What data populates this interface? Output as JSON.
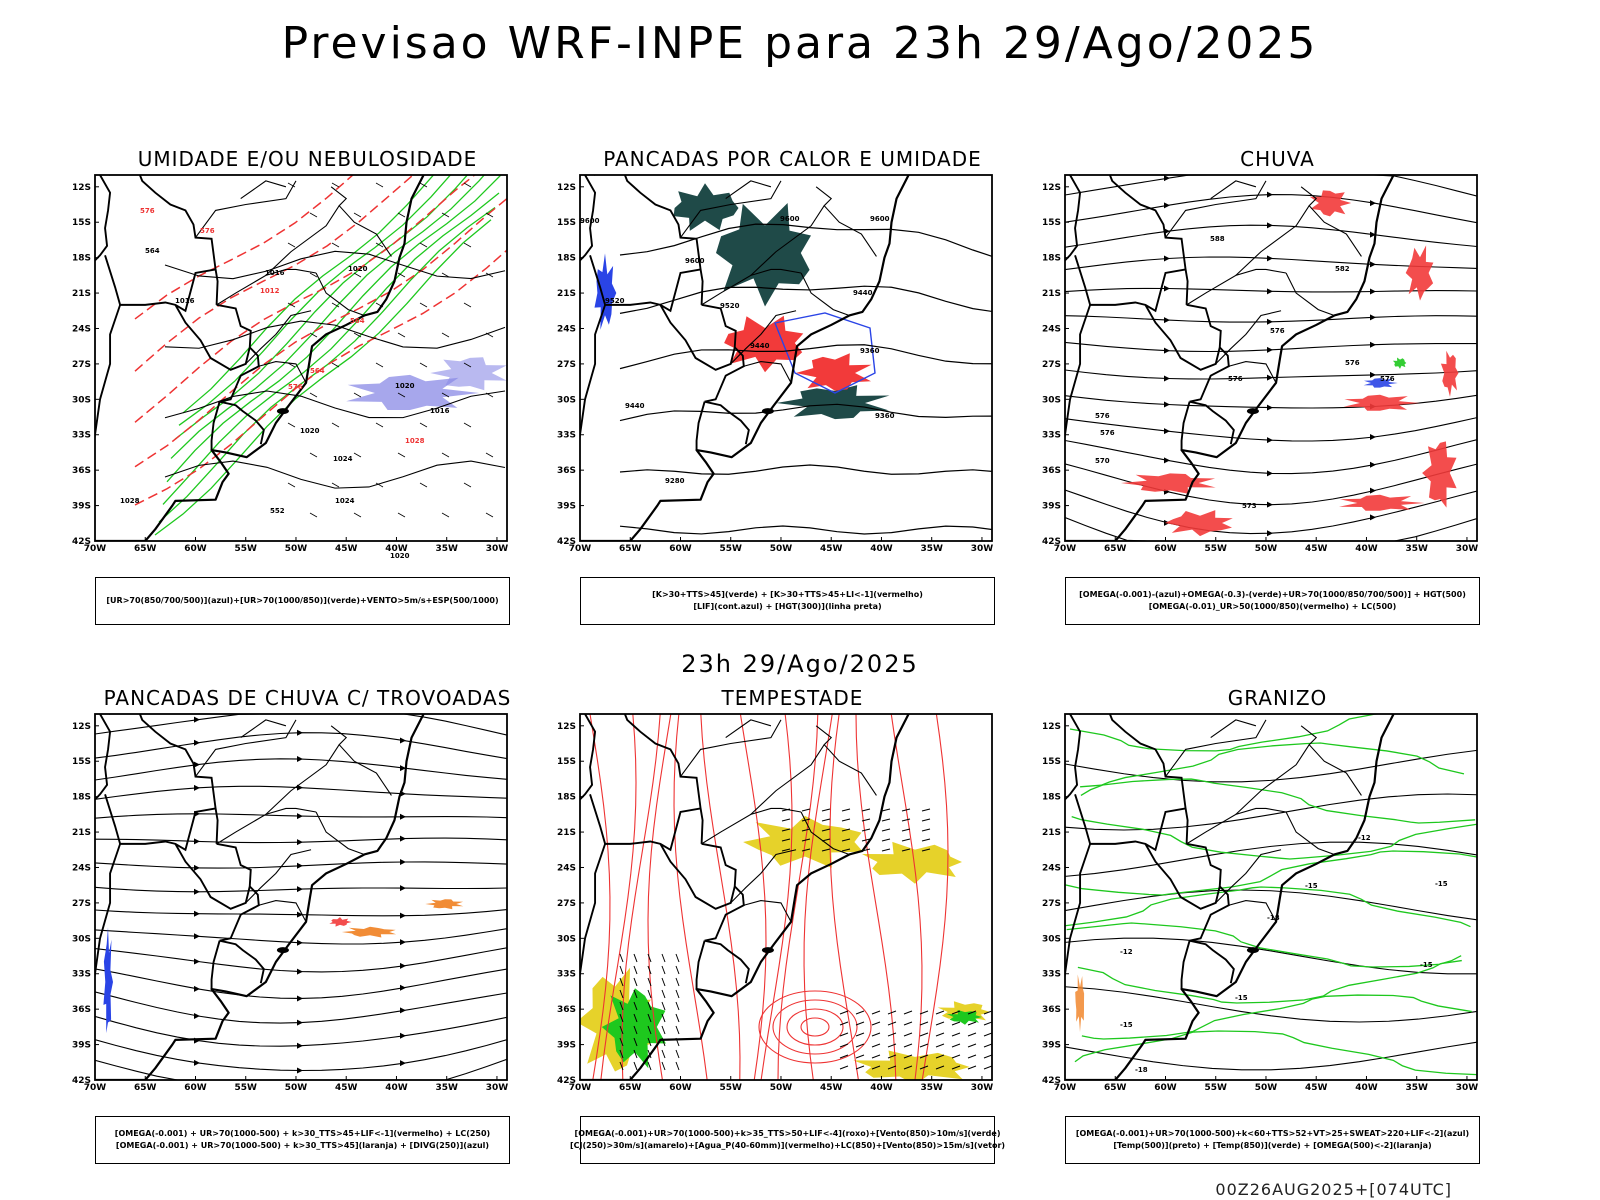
{
  "title": "Previsao WRF-INPE  para 23h 29/Ago/2025",
  "subtitle": "23h 29/Ago/2025",
  "footer": "00Z26AUG2025+[074UTC]",
  "axes": {
    "lat_labels": [
      "12S",
      "15S",
      "18S",
      "21S",
      "24S",
      "27S",
      "30S",
      "33S",
      "36S",
      "39S",
      "42S"
    ],
    "lon_labels": [
      "70W",
      "65W",
      "60W",
      "55W",
      "50W",
      "45W",
      "40W",
      "35W",
      "30W"
    ]
  },
  "colors": {
    "humidity_blue": "#8a8ae6",
    "green_contour": "#1ec81e",
    "red_contour": "#ee3333",
    "dark_teal": "#1f4a48",
    "red_fill": "#f23a3a",
    "blue_line": "#2a44e6",
    "yellow_fill": "#e6d22a",
    "orange": "#f08020"
  },
  "panels": [
    {
      "id": "umidade",
      "title": "UMIDADE E/OU NEBULOSIDADE",
      "legend": [
        "[UR>70(850/700/500)](azul)+[UR>70(1000/850)](verde)+VENTO>5m/s+ESP(500/1000)"
      ],
      "contour_labels": [
        "576",
        "576",
        "1016",
        "1020",
        "1020",
        "1016",
        "1020",
        "1024",
        "1024",
        "1028",
        "1012",
        "576",
        "564",
        "564",
        "552",
        "1016",
        "1020",
        "1028",
        "564"
      ]
    },
    {
      "id": "pancadas-calor",
      "title": "PANCADAS POR CALOR E UMIDADE",
      "legend": [
        "[K>30+TTS>45](verde) + [K>30+TTS>45+LI<-1](vermelho)",
        "[LIF](cont.azul) + [HGT(300)](linha preta)"
      ],
      "contour_labels": [
        "9600",
        "9600",
        "9600",
        "9520",
        "9520",
        "9440",
        "9440",
        "9440",
        "9360",
        "9360",
        "9280",
        "9600"
      ]
    },
    {
      "id": "chuva",
      "title": "CHUVA",
      "legend": [
        "[OMEGA(-0.001)-(azul)+OMEGA(-0.3)-(verde)+UR>70(1000/850/700/500)] + HGT(500)",
        "[OMEGA(-0.01)_UR>50(1000/850)(vermelho) + LC(500)"
      ],
      "contour_labels": [
        "588",
        "582",
        "576",
        "576",
        "576",
        "576",
        "570",
        "573",
        "576",
        "576"
      ]
    },
    {
      "id": "pancadas-trovoadas",
      "title": "PANCADAS DE CHUVA C/ TROVOADAS",
      "legend": [
        "[OMEGA(-0.001) + UR>70(1000-500) + k>30_TTS>45+LIF<-1](vermelho) + LC(250)",
        "[OMEGA(-0.001) + UR>70(1000-500) + k>30_TTS>45](laranja) + [DIVG(250)](azul)"
      ],
      "contour_labels": []
    },
    {
      "id": "tempestade",
      "title": "TEMPESTADE",
      "legend": [
        "[OMEGA(-0.001)+UR>70(1000-500)+k>35_TTS>50+LIF<-4](roxo)+[Vento(850)>10m/s](verde)",
        "[CJ(250)>30m/s](amarelo)+[Agua_P(40-60mm)](vermelho)+LC(850)+[Vento(850)>15m/s](vetor)"
      ],
      "contour_labels": []
    },
    {
      "id": "granizo",
      "title": "GRANIZO",
      "legend": [
        "[OMEGA(-0.001)+UR>70(1000-500)+k<60+TTS>52+VT>25+SWEAT>220+LIF<-2](azul)",
        "[Temp(500)](preto) + [Temp(850)](verde) + [OMEGA(500)<-2](laranja)"
      ],
      "contour_labels": [
        "-12",
        "-15",
        "-15",
        "-18",
        "-12",
        "-15",
        "-15",
        "-15",
        "-18"
      ]
    }
  ]
}
